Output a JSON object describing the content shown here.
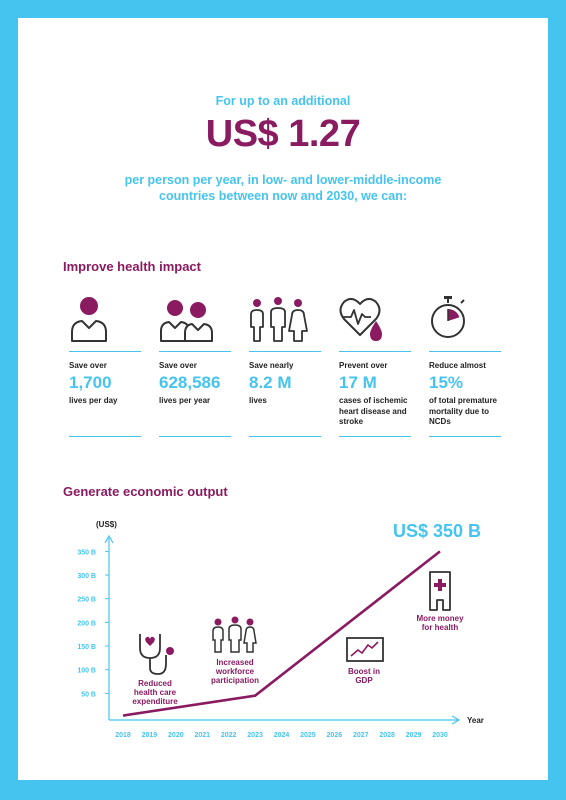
{
  "intro": {
    "line1": "For up to an additional",
    "headline": "US$ 1.27",
    "line2": "per person per year, in low- and lower-middle-income",
    "line3": "countries between now and 2030, we can:"
  },
  "health": {
    "title": "Improve health impact",
    "stats": [
      {
        "icon": "person-icon",
        "pre": "Save over",
        "value": "1,700",
        "post": [
          "lives per day"
        ]
      },
      {
        "icon": "two-people-icon",
        "pre": "Save over",
        "value": "628,586",
        "post": [
          "lives per year"
        ]
      },
      {
        "icon": "family-icon",
        "pre": "Save nearly",
        "value": "8.2 M",
        "post": [
          "lives"
        ]
      },
      {
        "icon": "heart-blood-drop-icon",
        "pre": "Prevent over",
        "value": "17 M",
        "post": [
          "cases of ischemic",
          "heart disease and",
          "stroke"
        ]
      },
      {
        "icon": "stopwatch-icon",
        "pre": "Reduce almost",
        "value": "15%",
        "post": [
          "of total premature",
          "mortality due to",
          "NCDs"
        ]
      }
    ]
  },
  "economic": {
    "title": "Generate economic output"
  },
  "chart_data": {
    "type": "line",
    "ylabel": "(US$)",
    "xlabel": "Year",
    "x_ticks": [
      "2018",
      "2019",
      "2020",
      "2021",
      "2022",
      "2023",
      "2024",
      "2025",
      "2026",
      "2027",
      "2028",
      "2029",
      "2030"
    ],
    "y_ticks": [
      "50 B",
      "100 B",
      "150 B",
      "200 B",
      "250 B",
      "300 B",
      "350 B"
    ],
    "y_tick_values": [
      50,
      100,
      150,
      200,
      250,
      300,
      350
    ],
    "ylim": [
      0,
      370
    ],
    "series": [
      {
        "x": [
          2018,
          2023,
          2030
        ],
        "y": [
          3,
          45,
          350
        ]
      }
    ],
    "peak_label": "US$ 350 B",
    "annotations": [
      {
        "icon": "stethoscope-icon",
        "lines": [
          "Reduced",
          "health care",
          "expenditure"
        ]
      },
      {
        "icon": "workforce-icon",
        "lines": [
          "Increased",
          "workforce",
          "participation"
        ]
      },
      {
        "icon": "gdp-chart-icon",
        "lines": [
          "Boost in",
          "GDP"
        ]
      },
      {
        "icon": "hospital-icon",
        "lines": [
          "More money",
          "for health"
        ]
      }
    ],
    "colors": {
      "line": "#8a1b61",
      "axis": "#45c4f0",
      "accent": "#45c4f0"
    }
  }
}
